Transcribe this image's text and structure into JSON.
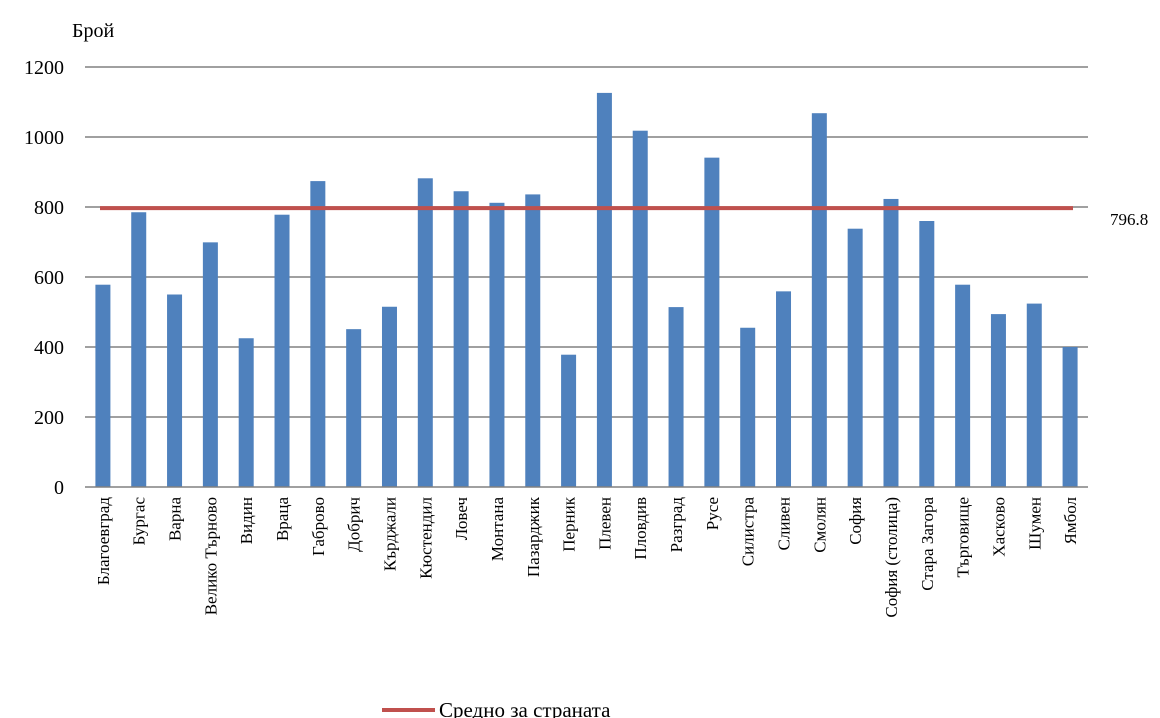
{
  "chart_data": {
    "type": "bar",
    "title": "",
    "xlabel": "",
    "ylabel": "Брой",
    "ylim": [
      0,
      1200
    ],
    "yticks": [
      0,
      200,
      400,
      600,
      800,
      1000,
      1200
    ],
    "grid": true,
    "legend_position": "bottom",
    "categories": [
      "Благоевград",
      "Бургас",
      "Варна",
      "Велико Търново",
      "Видин",
      "Враца",
      "Габрово",
      "Добрич",
      "Кърджали",
      "Кюстендил",
      "Ловеч",
      "Монтана",
      "Пазарджик",
      "Перник",
      "Плевен",
      "Пловдив",
      "Разград",
      "Русе",
      "Силистра",
      "Сливен",
      "Смолян",
      "София",
      "София (столица)",
      "Стара Загора",
      "Търговище",
      "Хасково",
      "Шумен",
      "Ямбол"
    ],
    "series": [
      {
        "type": "bar",
        "color": "#4F81BD",
        "values": [
          578,
          785,
          550,
          699,
          425,
          778,
          874,
          451,
          515,
          882,
          845,
          812,
          836,
          378,
          1126,
          1018,
          514,
          941,
          455,
          559,
          1068,
          738,
          823,
          760,
          578,
          494,
          524,
          400
        ]
      },
      {
        "type": "line",
        "name": "Средно за страната",
        "color": "#C0504D",
        "value": 796.8,
        "value_label": "796.8"
      }
    ]
  }
}
